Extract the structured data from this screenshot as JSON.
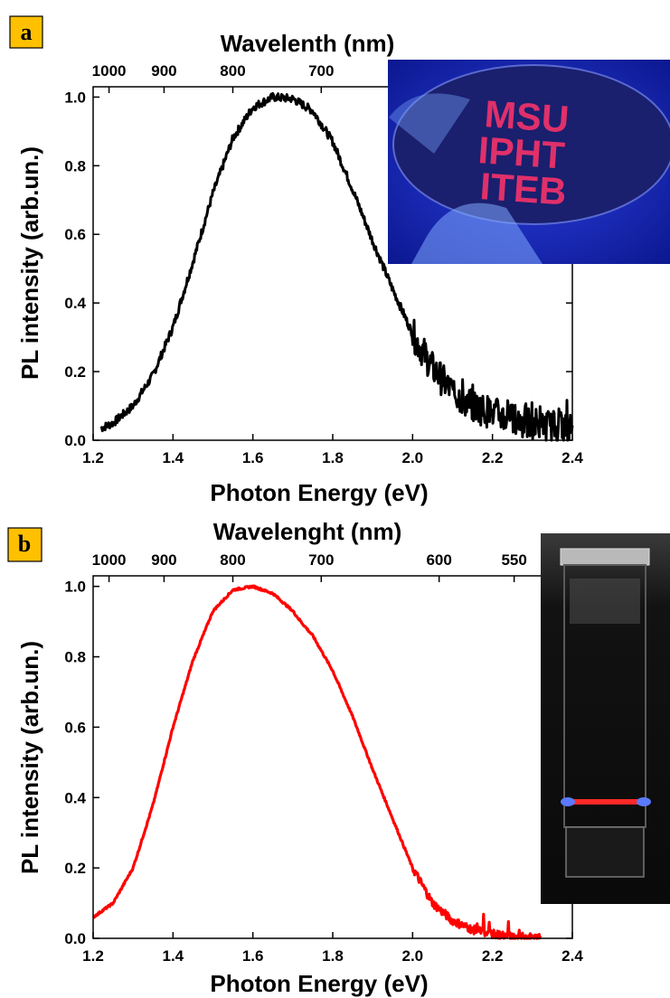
{
  "panels": [
    {
      "label": "a",
      "label_bg": "#FFC000",
      "inset": {
        "kind": "wafer-photo",
        "texts": [
          "MSU",
          "IPHT",
          "ITEB"
        ]
      }
    },
    {
      "label": "b",
      "label_bg": "#FFC000",
      "inset": {
        "kind": "cuvette-photo",
        "texts": []
      }
    }
  ],
  "chart_data": [
    {
      "type": "line",
      "title": "",
      "xlabel": "Photon Energy (eV)",
      "ylabel": "PL intensity (arb.un.)",
      "top_xlabel": "Wavelenth (nm)",
      "xlim": [
        1.2,
        2.4
      ],
      "ylim": [
        0.0,
        1.03
      ],
      "x_ticks": [
        "1.2",
        "1.4",
        "1.6",
        "1.8",
        "2.0",
        "2.2",
        "2.4"
      ],
      "y_ticks": [
        "0.0",
        "0.2",
        "0.4",
        "0.6",
        "0.8",
        "1.0"
      ],
      "top_ticks": [
        "1000",
        "900",
        "800",
        "700"
      ],
      "color": "#000000",
      "noise": 0.012,
      "x_range": [
        1.22,
        2.4
      ],
      "series": [
        {
          "x": [
            1.22,
            1.25,
            1.3,
            1.35,
            1.4,
            1.45,
            1.5,
            1.55,
            1.6,
            1.65,
            1.7,
            1.75,
            1.8,
            1.85,
            1.9,
            1.95,
            2.0,
            2.05,
            2.1,
            2.15,
            2.2,
            2.25,
            2.3,
            2.35,
            2.4
          ],
          "y": [
            0.035,
            0.05,
            0.1,
            0.19,
            0.33,
            0.52,
            0.72,
            0.88,
            0.97,
            1.0,
            0.995,
            0.96,
            0.87,
            0.73,
            0.58,
            0.44,
            0.31,
            0.21,
            0.14,
            0.1,
            0.08,
            0.06,
            0.05,
            0.04,
            0.035
          ]
        }
      ]
    },
    {
      "type": "line",
      "title": "",
      "xlabel": "Photon Energy (eV)",
      "ylabel": "PL intensity (arb.un.)",
      "top_xlabel": "Wavelenght (nm)",
      "xlim": [
        1.2,
        2.4
      ],
      "ylim": [
        0.0,
        1.03
      ],
      "x_ticks": [
        "1.2",
        "1.4",
        "1.6",
        "1.8",
        "2.0",
        "2.2",
        "2.4"
      ],
      "y_ticks": [
        "0.0",
        "0.2",
        "0.4",
        "0.6",
        "0.8",
        "1.0"
      ],
      "top_ticks": [
        "1000",
        "900",
        "800",
        "700",
        "600",
        "550"
      ],
      "color": "#FF0000",
      "noise": 0.003,
      "x_range": [
        1.2,
        2.32
      ],
      "series": [
        {
          "x": [
            1.2,
            1.25,
            1.3,
            1.35,
            1.4,
            1.45,
            1.5,
            1.55,
            1.6,
            1.65,
            1.7,
            1.72,
            1.75,
            1.8,
            1.85,
            1.9,
            1.95,
            2.0,
            2.05,
            2.1,
            2.15,
            2.2,
            2.25,
            2.3,
            2.32
          ],
          "y": [
            0.06,
            0.1,
            0.2,
            0.38,
            0.6,
            0.79,
            0.93,
            0.99,
            1.0,
            0.98,
            0.93,
            0.9,
            0.86,
            0.76,
            0.63,
            0.48,
            0.34,
            0.2,
            0.1,
            0.05,
            0.025,
            0.012,
            0.005,
            0.002,
            0.001
          ]
        }
      ]
    }
  ]
}
